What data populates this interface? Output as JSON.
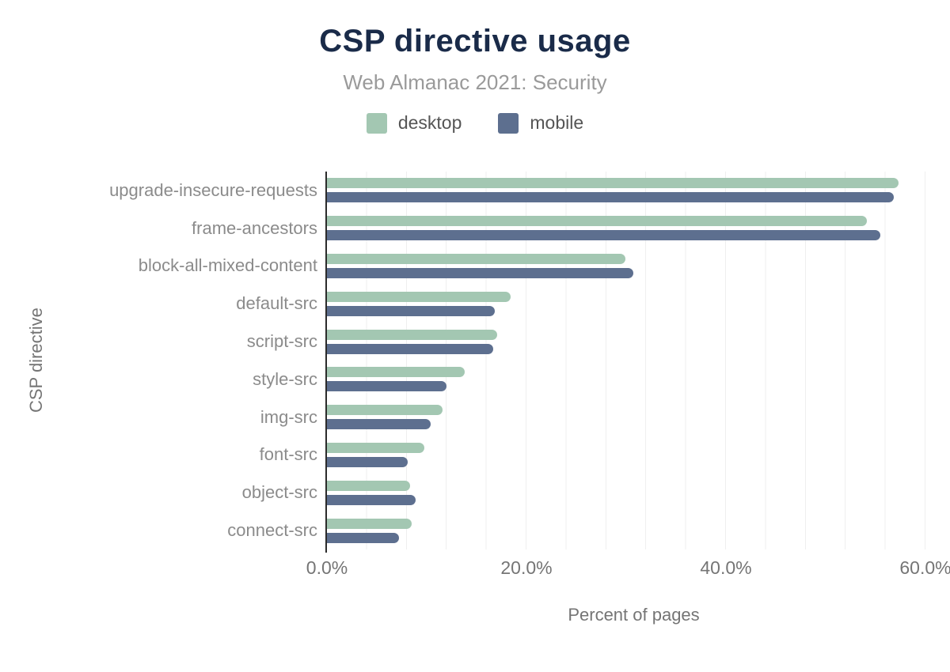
{
  "chart_data": {
    "type": "bar",
    "orientation": "horizontal",
    "title": "CSP directive usage",
    "subtitle": "Web Almanac 2021: Security",
    "xlabel": "Percent of pages",
    "ylabel": "CSP directive",
    "legend_position": "top",
    "grid": {
      "visible": true,
      "minor_interval_percent": 4
    },
    "xlim": [
      0,
      60
    ],
    "x_ticks": [
      {
        "label": "0.0%",
        "value": 0
      },
      {
        "label": "20.0%",
        "value": 20
      },
      {
        "label": "40.0%",
        "value": 40
      },
      {
        "label": "60.0%",
        "value": 60
      }
    ],
    "categories": [
      "upgrade-insecure-requests",
      "frame-ancestors",
      "block-all-mixed-content",
      "default-src",
      "script-src",
      "style-src",
      "img-src",
      "font-src",
      "object-src",
      "connect-src"
    ],
    "series": [
      {
        "name": "desktop",
        "color": "#a3c7b2",
        "values": [
          57.3,
          54.1,
          29.9,
          18.4,
          17.1,
          13.8,
          11.6,
          9.8,
          8.3,
          8.5
        ]
      },
      {
        "name": "mobile",
        "color": "#5d6f8f",
        "values": [
          56.8,
          55.5,
          30.7,
          16.8,
          16.7,
          12.0,
          10.4,
          8.1,
          8.9,
          7.2
        ]
      }
    ],
    "colors": {
      "title": "#1a2b49",
      "subtitle": "#9a9a9a",
      "axis_line": "#2b2b2b",
      "gridline": "#efefef",
      "category_label": "#8b8b8b",
      "tick_label": "#757575",
      "legend_label": "#555555"
    }
  }
}
